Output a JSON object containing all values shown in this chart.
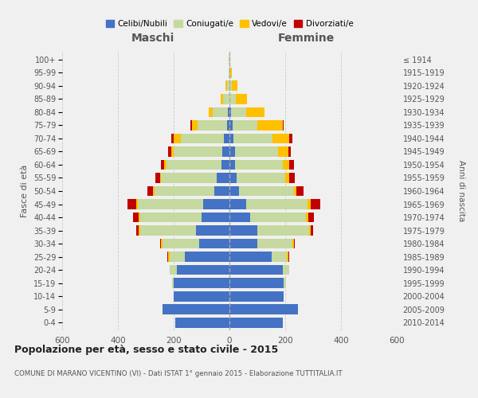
{
  "age_groups": [
    "0-4",
    "5-9",
    "10-14",
    "15-19",
    "20-24",
    "25-29",
    "30-34",
    "35-39",
    "40-44",
    "45-49",
    "50-54",
    "55-59",
    "60-64",
    "65-69",
    "70-74",
    "75-79",
    "80-84",
    "85-89",
    "90-94",
    "95-99",
    "100+"
  ],
  "birth_years": [
    "2010-2014",
    "2005-2009",
    "2000-2004",
    "1995-1999",
    "1990-1994",
    "1985-1989",
    "1980-1984",
    "1975-1979",
    "1970-1974",
    "1965-1969",
    "1960-1964",
    "1955-1959",
    "1950-1954",
    "1945-1949",
    "1940-1944",
    "1935-1939",
    "1930-1934",
    "1925-1929",
    "1920-1924",
    "1915-1919",
    "≤ 1914"
  ],
  "males": {
    "celibi": [
      195,
      240,
      200,
      200,
      190,
      160,
      110,
      120,
      100,
      95,
      55,
      45,
      30,
      25,
      20,
      10,
      5,
      0,
      0,
      0,
      0
    ],
    "coniugati": [
      0,
      0,
      0,
      5,
      25,
      55,
      130,
      200,
      220,
      235,
      215,
      200,
      195,
      175,
      155,
      105,
      55,
      22,
      8,
      3,
      2
    ],
    "vedovi": [
      0,
      0,
      0,
      0,
      0,
      5,
      5,
      5,
      5,
      5,
      5,
      5,
      10,
      10,
      25,
      20,
      15,
      10,
      5,
      0,
      0
    ],
    "divorziati": [
      0,
      0,
      0,
      0,
      0,
      3,
      5,
      10,
      20,
      30,
      20,
      15,
      10,
      10,
      10,
      5,
      0,
      0,
      0,
      0,
      0
    ]
  },
  "females": {
    "nubili": [
      190,
      245,
      195,
      195,
      190,
      150,
      100,
      100,
      75,
      60,
      35,
      25,
      20,
      20,
      15,
      10,
      5,
      0,
      0,
      0,
      0
    ],
    "coniugate": [
      0,
      0,
      0,
      8,
      25,
      55,
      125,
      185,
      200,
      220,
      195,
      175,
      170,
      155,
      140,
      90,
      55,
      22,
      8,
      3,
      2
    ],
    "vedove": [
      0,
      0,
      0,
      0,
      0,
      5,
      5,
      5,
      8,
      10,
      10,
      15,
      25,
      35,
      60,
      90,
      65,
      40,
      20,
      5,
      2
    ],
    "divorziate": [
      0,
      0,
      0,
      0,
      0,
      3,
      5,
      10,
      20,
      35,
      25,
      20,
      15,
      10,
      10,
      5,
      0,
      0,
      0,
      0,
      0
    ]
  },
  "color_celibi": "#4472c4",
  "color_coniugati": "#c5d9a0",
  "color_vedovi": "#ffc000",
  "color_divorziati": "#c00000",
  "title_main": "Popolazione per età, sesso e stato civile - 2015",
  "title_sub": "COMUNE DI MARANO VICENTINO (VI) - Dati ISTAT 1° gennaio 2015 - Elaborazione TUTTITALIA.IT",
  "xlabel_left": "Maschi",
  "xlabel_right": "Femmine",
  "ylabel_left": "Fasce di età",
  "ylabel_right": "Anni di nascita",
  "xlim": 600,
  "legend_labels": [
    "Celibi/Nubili",
    "Coniugati/e",
    "Vedovi/e",
    "Divorziati/e"
  ],
  "bg_color": "#f0f0f0",
  "grid_color": "#cccccc"
}
